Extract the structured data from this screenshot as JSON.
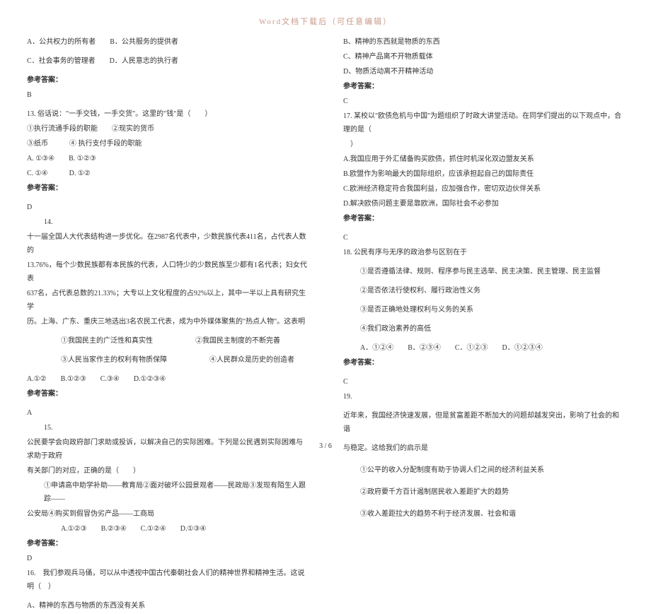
{
  "header": "Word文档下载后（可任意编辑）",
  "footer": "3 / 6",
  "left": {
    "l1": "A．公共权力的所有者　　B．公共服务的提供者",
    "l2": "C．社会事务的管理者　　D．人民意志的执行者",
    "ans12_label": "参考答案：",
    "ans12_val": "B",
    "q13_1": "13. 俗话说：\"一手交钱，一手交货\"。这里的\"钱\"是（　　）",
    "q13_2": "①执行流通手段的职能　　②现实的货币",
    "q13_3": "③纸币　　　④ 执行支付手段的职能",
    "q13_4": "A. ①③④　　B. ①②③",
    "q13_5": "C. ①④　　　D. ①②",
    "ans13_label": "参考答案：",
    "ans13_val": "D",
    "q14_label": "14.",
    "q14_1": "十一届全国人大代表结构进一步优化。在2987名代表中，少数民族代表411名，占代表人数的",
    "q14_2": "13.76%，每个少数民族都有本民族的代表，人口特少的少数民族至少都有1名代表；妇女代表",
    "q14_3": "637名，占代表总数的21.33%；大专以上文化程度的占92%以上，其中一半以上具有研究生学",
    "q14_4": "历。上海、广东、重庆三地选出3名农民工代表，成为中外媒体聚焦的\"热点人物\"。这表明",
    "q14_c1": "①我国民主的广泛性和真实性",
    "q14_c2": "②我国民主制度的不断完善",
    "q14_c3": "③人民当家作主的权利有物质保障",
    "q14_c4": "④人民群众是历史的创造者",
    "q14_opts": "A.①②　　B.①②③　　C.③④　　D.①②③④",
    "ans14_label": "参考答案：",
    "ans14_val": "A",
    "q15_label": "15.",
    "q15_1": "公民要学会向政府部门求助或投诉，以解决自己的实际困难。下列是公民遇到实际困难与求助于政府",
    "q15_2": "有关部门的对应，正确的是（　　）",
    "q15_3": "①申请高中助学补助——教育局②面对破坏公园景观者——民政局③发现有陌生人跟踪——",
    "q15_4": "公安局④购买到假冒伪劣产品——工商局",
    "q15_opts": "A.①②③　　B.②③④　　C.①②④　　D.①③④",
    "ans15_label": "参考答案：",
    "ans15_val": "D",
    "q16_1": "16.　我们参观兵马俑，可以从中透视中国古代秦朝社会人们的精神世界和精神生活。这说明（　）",
    "q16_a": "A、精神的东西与物质的东西没有关系"
  },
  "right": {
    "q16_b": "B、精神的东西就是物质的东西",
    "q16_c": "C、精神产品离不开物质载体",
    "q16_d": "D、物质活动离不开精神活动",
    "ans16_label": "参考答案：",
    "ans16_val": "C",
    "q17_1": "17. 某校以\"欧债危机与中国\"为题组织了时政大讲堂活动。在同学们提出的以下观点中，合理的是（",
    "q17_2": "　）",
    "q17_a": "A.我国应用于外汇储备购买欧债，抓住时机深化双边盟友关系",
    "q17_b": "B.欧盟作为影响最大的国际组织，应该承担起自己的国际责任",
    "q17_c": "C.欧洲经济稳定符合我国利益，应加强合作，密切双边伙伴关系",
    "q17_d": "D.解决欧债问题主要是靠欧洲，国际社会不必参加",
    "ans17_label": "参考答案：",
    "ans17_val": "C",
    "q18_1": "18. 公民有序与无序的政治参与区别在于",
    "q18_c1": "①是否遵循法律、规则、程序参与民主选举、民主决策、民主管理、民主监督",
    "q18_c2": "②是否依法行使权利、履行政治性义务",
    "q18_c3": "③是否正确地处理权利与义务的关系",
    "q18_c4": "④我们政治素养的高低",
    "q18_opts": "A．①②④　　B．②③④　　C．①②③　　D．①②③④",
    "ans18_label": "参考答案：",
    "ans18_val": "C",
    "q19_label": "19.",
    "q19_1": "近年来，我国经济快速发展，但是贫富差距不断加大的问题却越发突出，影响了社会的和谐",
    "q19_2": "与稳定。这给我们的启示是",
    "q19_c1": "①公平的收入分配制度有助于协调人们之间的经济利益关系",
    "q19_c2": "②政府要千方百计遏制居民收入差距扩大的趋势",
    "q19_c3": "③收入差距拉大的趋势不利于经济发展、社会和谐"
  }
}
